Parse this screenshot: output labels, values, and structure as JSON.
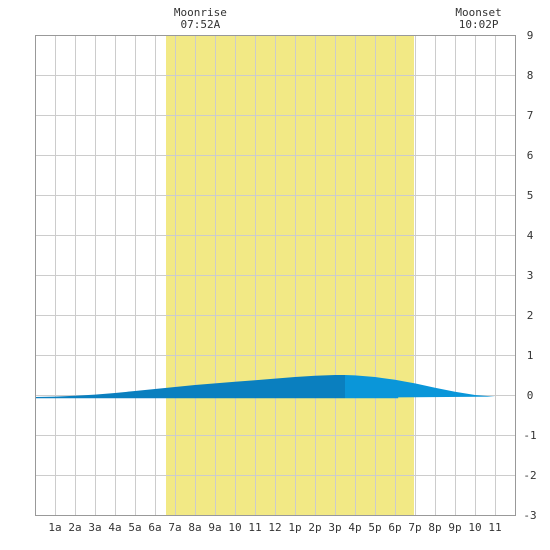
{
  "chart_data": {
    "type": "area",
    "title": "",
    "xlabel": "",
    "ylabel": "",
    "x_ticks": [
      "1a",
      "2a",
      "3a",
      "4a",
      "5a",
      "6a",
      "7a",
      "8a",
      "9a",
      "10",
      "11",
      "12",
      "1p",
      "2p",
      "3p",
      "4p",
      "5p",
      "6p",
      "7p",
      "8p",
      "9p",
      "10",
      "11"
    ],
    "xlim": [
      0,
      24
    ],
    "ylim": [
      -3,
      9
    ],
    "y_ticks": [
      -3,
      -2,
      -1,
      0,
      1,
      2,
      3,
      4,
      5,
      6,
      7,
      8,
      9
    ],
    "grid": true,
    "daylight_hours": [
      6.55,
      18.95
    ],
    "moonrise": {
      "label": "Moonrise",
      "time": "07:52A",
      "hour": 7.87
    },
    "moonset": {
      "label": "Moonset",
      "time": "10:02P",
      "hour": 22.03
    },
    "series": [
      {
        "x": [
          0,
          1,
          2,
          3,
          4,
          5,
          6,
          7,
          8,
          9,
          10,
          11,
          12,
          13,
          14,
          15,
          15.5,
          16,
          17,
          18,
          19,
          20,
          21,
          22,
          23,
          24
        ],
        "y": [
          -0.05,
          -0.04,
          -0.02,
          0.01,
          0.05,
          0.1,
          0.15,
          0.2,
          0.25,
          0.29,
          0.33,
          0.37,
          0.41,
          0.45,
          0.48,
          0.5,
          0.5,
          0.49,
          0.45,
          0.38,
          0.29,
          0.18,
          0.08,
          0.0,
          -0.04,
          -0.06
        ]
      }
    ],
    "colors": {
      "daylight": "#f2e985",
      "tide_before": "#0a7fbf",
      "tide_after": "#0a96d9"
    },
    "split_hour": 15.5
  }
}
